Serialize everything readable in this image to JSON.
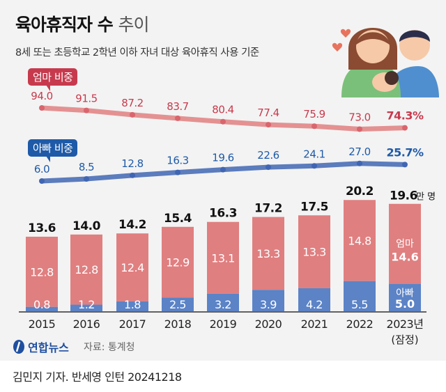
{
  "title": {
    "bold": "육아휴직자 수",
    "light": "추이"
  },
  "subtitle": "8세 또는 초등학교 2학년 이하 자녀 대상 육아휴직 사용 기준",
  "unit_label": "만 명",
  "source": "자료: 통계청",
  "logo_text": "연합뉴스",
  "footer": "김민지 기자. 반세영 인턴  20241218",
  "colors": {
    "mom": "#e07f80",
    "mom_line": "#d9656d",
    "mom_tag": "#c73a4d",
    "dad": "#5b83c6",
    "dad_line": "#3f66b3",
    "dad_tag": "#1e5aa8"
  },
  "chart_data": [
    {
      "type": "line",
      "name": "엄마 비중",
      "categories": [
        "2015",
        "2016",
        "2017",
        "2018",
        "2019",
        "2020",
        "2021",
        "2022",
        "2023"
      ],
      "values": [
        94.0,
        91.5,
        87.2,
        83.7,
        80.4,
        77.4,
        75.9,
        73.0,
        74.3
      ],
      "labels": [
        "94.0",
        "91.5",
        "87.2",
        "83.7",
        "80.4",
        "77.4",
        "75.9",
        "73.0",
        "74.3%"
      ]
    },
    {
      "type": "line",
      "name": "아빠 비중",
      "categories": [
        "2015",
        "2016",
        "2017",
        "2018",
        "2019",
        "2020",
        "2021",
        "2022",
        "2023"
      ],
      "values": [
        6.0,
        8.5,
        12.8,
        16.3,
        19.6,
        22.6,
        24.1,
        27.0,
        25.7
      ],
      "labels": [
        "6.0",
        "8.5",
        "12.8",
        "16.3",
        "19.6",
        "22.6",
        "24.1",
        "27.0",
        "25.7%"
      ]
    },
    {
      "type": "bar",
      "stacked": true,
      "categories": [
        "2015",
        "2016",
        "2017",
        "2018",
        "2019",
        "2020",
        "2021",
        "2022",
        "2023년"
      ],
      "category_note_last": "(잠정)",
      "series": [
        {
          "name": "아빠",
          "values": [
            0.8,
            1.2,
            1.8,
            2.5,
            3.2,
            3.9,
            4.2,
            5.5,
            5.0
          ]
        },
        {
          "name": "엄마",
          "values": [
            12.8,
            12.8,
            12.4,
            12.9,
            13.1,
            13.3,
            13.3,
            14.8,
            14.6
          ]
        }
      ],
      "totals": [
        "13.6",
        "14.0",
        "14.2",
        "15.4",
        "16.3",
        "17.2",
        "17.5",
        "20.2",
        "19.6"
      ]
    }
  ]
}
